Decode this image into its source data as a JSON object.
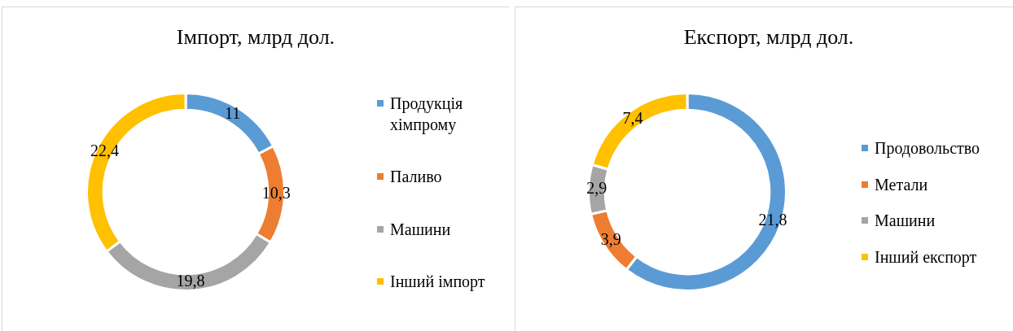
{
  "chart_data": [
    {
      "type": "donut",
      "title": "Імпорт, млрд дол.",
      "categories": [
        "Продукція хімпрому",
        "Паливо",
        "Машини",
        "Інший імпорт"
      ],
      "values": [
        11,
        10.3,
        19.8,
        22.4
      ],
      "colors": [
        "#5b9bd5",
        "#ed7d31",
        "#a5a5a5",
        "#ffc000"
      ],
      "value_labels": [
        "11",
        "10,3",
        "19,8",
        "22,4"
      ],
      "legend": "right"
    },
    {
      "type": "donut",
      "title": "Експорт, млрд дол.",
      "categories": [
        "Продовольство",
        "Метали",
        "Машини",
        "Інший експорт"
      ],
      "values": [
        21.8,
        3.9,
        2.9,
        7.4
      ],
      "colors": [
        "#5b9bd5",
        "#ed7d31",
        "#a5a5a5",
        "#ffc000"
      ],
      "value_labels": [
        "21,8",
        "3,9",
        "2,9",
        "7,4"
      ],
      "legend": "right"
    }
  ]
}
